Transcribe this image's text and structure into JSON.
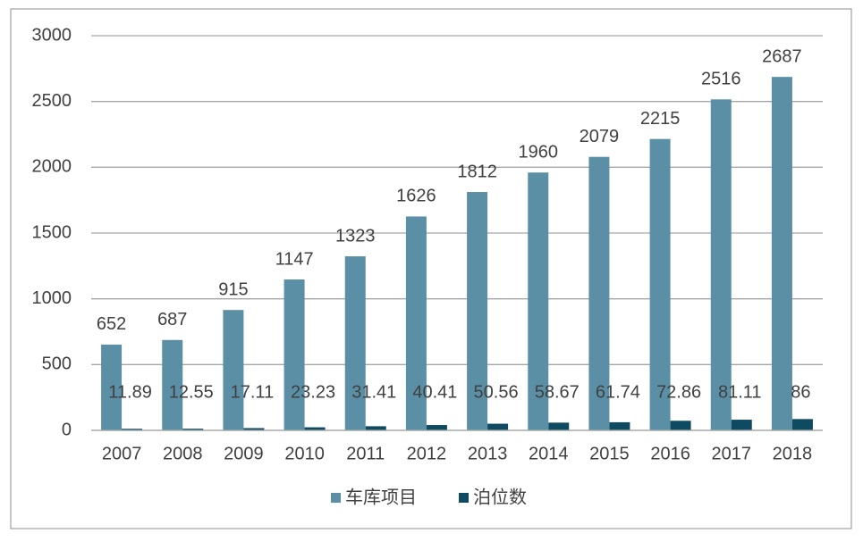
{
  "chart_data": {
    "type": "bar",
    "categories": [
      "2007",
      "2008",
      "2009",
      "2010",
      "2011",
      "2012",
      "2013",
      "2014",
      "2015",
      "2016",
      "2017",
      "2018"
    ],
    "series": [
      {
        "name": "车库项目",
        "color": "#5b8fa6",
        "values": [
          652,
          687,
          915,
          1147,
          1323,
          1626,
          1812,
          1960,
          2079,
          2215,
          2516,
          2687
        ]
      },
      {
        "name": "泊位数",
        "color": "#0e4b62",
        "values": [
          11.89,
          12.55,
          17.11,
          23.23,
          31.41,
          40.41,
          50.56,
          58.67,
          61.74,
          72.86,
          81.11,
          86
        ]
      }
    ],
    "ylim": [
      0,
      3000
    ],
    "yticks": [
      0,
      500,
      1000,
      1500,
      2000,
      2500,
      3000
    ],
    "grid": true,
    "legend": "bottom"
  }
}
